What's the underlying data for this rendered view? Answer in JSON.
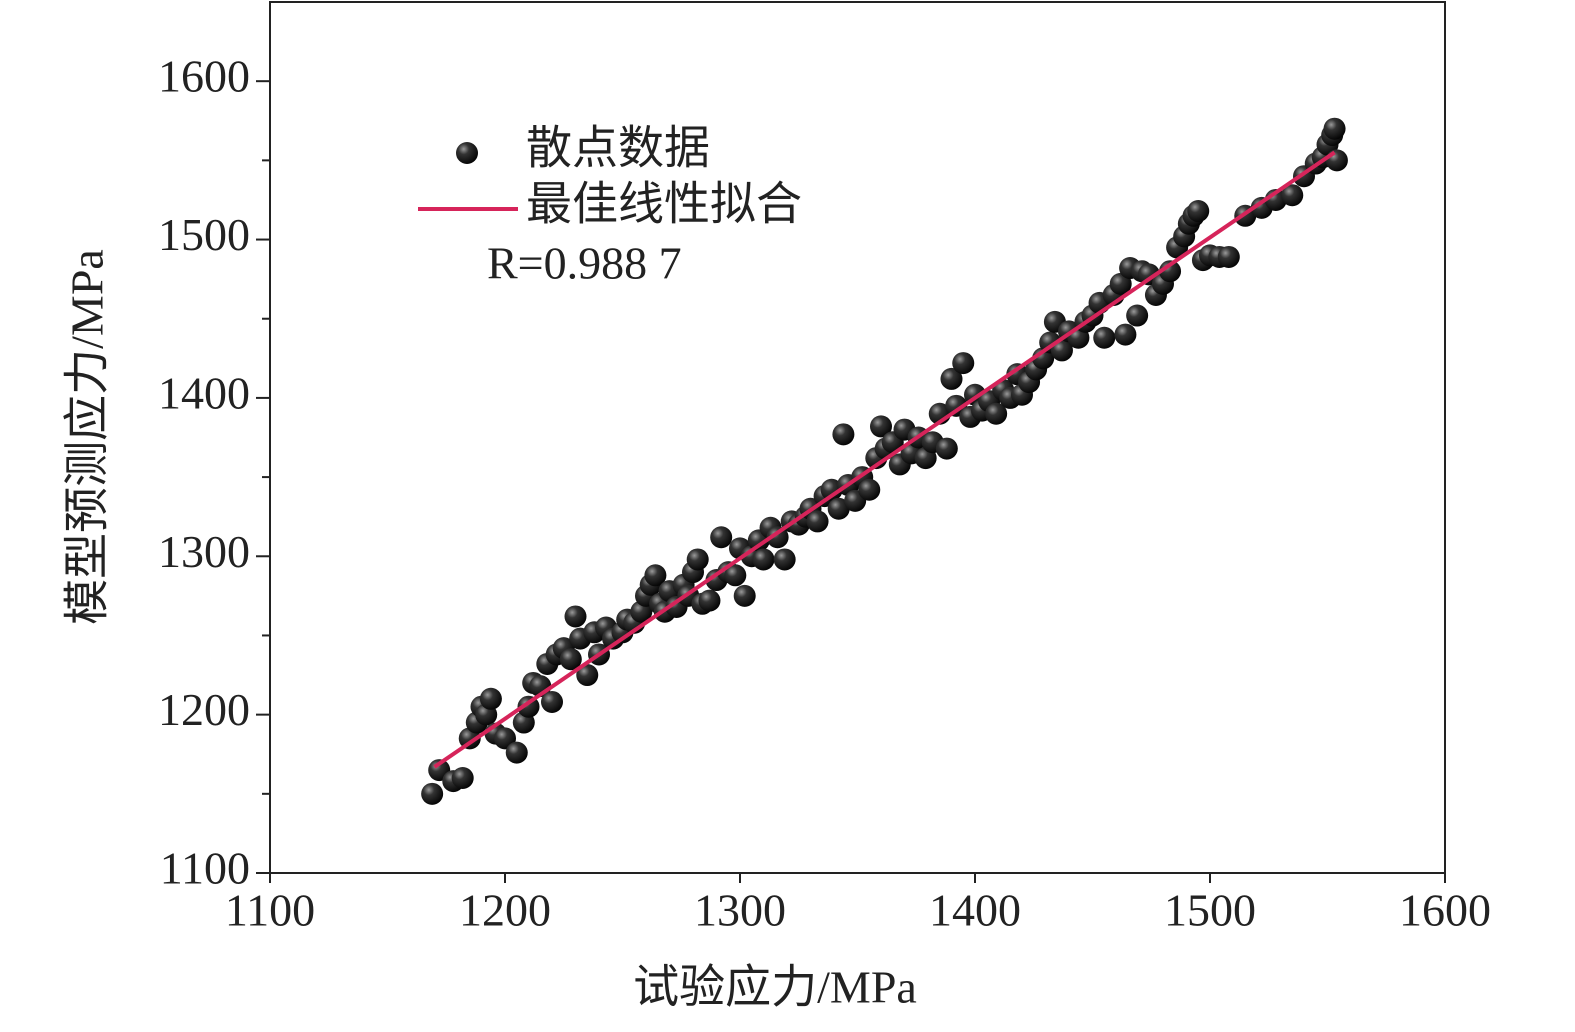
{
  "chart_data": {
    "type": "scatter",
    "x_label": "试验应力/MPa",
    "y_label": "模型预测应力/MPa",
    "annotation": "R=0.988 7",
    "xlim": [
      1100,
      1600
    ],
    "ylim": [
      1100,
      1650
    ],
    "xticks": [
      1100,
      1200,
      1300,
      1400,
      1500,
      1600
    ],
    "yticks": [
      1100,
      1200,
      1300,
      1400,
      1500,
      1600
    ],
    "yminorticks": [
      1150,
      1250,
      1350,
      1450,
      1550
    ],
    "series": [
      {
        "name": "散点数据",
        "color": "#111111",
        "x": [
          1169,
          1172,
          1178,
          1182,
          1185,
          1188,
          1190,
          1192,
          1194,
          1196,
          1200,
          1205,
          1208,
          1210,
          1212,
          1215,
          1218,
          1220,
          1222,
          1225,
          1228,
          1230,
          1232,
          1235,
          1238,
          1240,
          1243,
          1246,
          1250,
          1252,
          1255,
          1258,
          1260,
          1262,
          1264,
          1266,
          1268,
          1270,
          1273,
          1276,
          1278,
          1280,
          1282,
          1284,
          1287,
          1290,
          1292,
          1295,
          1298,
          1300,
          1302,
          1305,
          1308,
          1310,
          1313,
          1316,
          1319,
          1322,
          1325,
          1328,
          1330,
          1333,
          1336,
          1339,
          1342,
          1344,
          1346,
          1349,
          1352,
          1355,
          1358,
          1360,
          1362,
          1365,
          1368,
          1370,
          1373,
          1376,
          1379,
          1382,
          1385,
          1388,
          1390,
          1392,
          1395,
          1398,
          1400,
          1403,
          1406,
          1409,
          1412,
          1415,
          1418,
          1420,
          1423,
          1426,
          1429,
          1432,
          1434,
          1437,
          1440,
          1444,
          1447,
          1450,
          1453,
          1455,
          1459,
          1462,
          1464,
          1466,
          1469,
          1471,
          1474,
          1477,
          1480,
          1483,
          1486,
          1489,
          1491,
          1493,
          1495,
          1497,
          1500,
          1504,
          1508,
          1515,
          1522,
          1528,
          1535,
          1540,
          1545,
          1548,
          1550,
          1552,
          1553,
          1554
        ],
        "values": [
          1150,
          1165,
          1158,
          1160,
          1185,
          1195,
          1205,
          1200,
          1210,
          1188,
          1185,
          1176,
          1195,
          1205,
          1220,
          1218,
          1232,
          1208,
          1238,
          1242,
          1235,
          1262,
          1248,
          1225,
          1252,
          1238,
          1255,
          1248,
          1252,
          1260,
          1258,
          1265,
          1275,
          1282,
          1288,
          1270,
          1265,
          1278,
          1268,
          1282,
          1275,
          1290,
          1298,
          1270,
          1272,
          1285,
          1312,
          1290,
          1288,
          1305,
          1275,
          1300,
          1310,
          1298,
          1318,
          1312,
          1298,
          1322,
          1320,
          1325,
          1330,
          1322,
          1338,
          1342,
          1330,
          1377,
          1345,
          1335,
          1350,
          1342,
          1362,
          1382,
          1368,
          1372,
          1358,
          1380,
          1365,
          1375,
          1362,
          1372,
          1390,
          1368,
          1412,
          1395,
          1422,
          1388,
          1402,
          1392,
          1398,
          1390,
          1405,
          1400,
          1415,
          1402,
          1410,
          1418,
          1425,
          1435,
          1448,
          1430,
          1442,
          1438,
          1448,
          1452,
          1460,
          1438,
          1465,
          1472,
          1440,
          1482,
          1452,
          1480,
          1478,
          1465,
          1472,
          1480,
          1495,
          1502,
          1510,
          1515,
          1518,
          1487,
          1490,
          1489,
          1489,
          1515,
          1520,
          1525,
          1528,
          1540,
          1548,
          1552,
          1560,
          1566,
          1570,
          1550
        ]
      },
      {
        "name": "最佳线性拟合",
        "color": "#d6245a",
        "type": "line",
        "x": [
          1170,
          1553
        ],
        "values": [
          1167,
          1555
        ]
      }
    ]
  }
}
